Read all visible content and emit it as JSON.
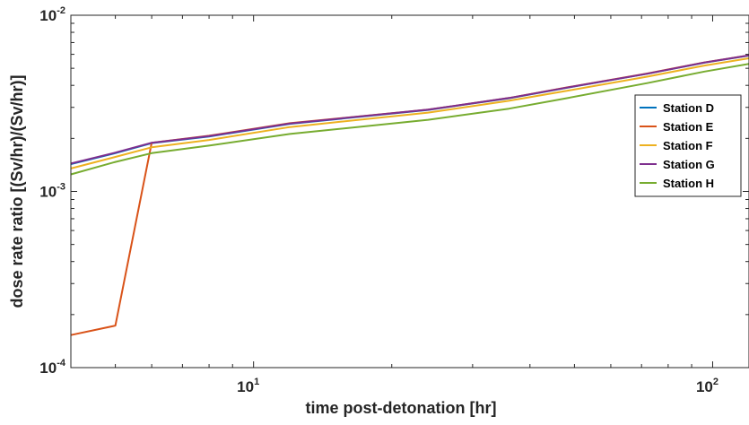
{
  "chart_data": {
    "type": "line",
    "title": "",
    "xlabel": "time post-detonation [hr]",
    "ylabel": "dose rate ratio [(Sv/hr)/(Sv/hr)]",
    "xscale": "log",
    "yscale": "log",
    "xlim": [
      4,
      120
    ],
    "ylim": [
      0.0001,
      0.01
    ],
    "x_ticks": [
      {
        "value": 10,
        "base": "10",
        "exp": "1"
      },
      {
        "value": 100,
        "base": "10",
        "exp": "2"
      }
    ],
    "y_ticks": [
      {
        "value": 0.0001,
        "base": "10",
        "exp": "-4"
      },
      {
        "value": 0.001,
        "base": "10",
        "exp": "-3"
      },
      {
        "value": 0.01,
        "base": "10",
        "exp": "-2"
      }
    ],
    "grid": false,
    "legend_position": "right",
    "series": [
      {
        "name": "Station D",
        "color": "#0072BD",
        "x": [
          4,
          5,
          6,
          8,
          12,
          24,
          36,
          48,
          72,
          96,
          120
        ],
        "y": [
          0.00143,
          0.00165,
          0.00188,
          0.00205,
          0.00242,
          0.0029,
          0.00338,
          0.00387,
          0.00465,
          0.00538,
          0.0059
        ]
      },
      {
        "name": "Station E",
        "color": "#D95319",
        "x": [
          4,
          5,
          6,
          8,
          12,
          24,
          36,
          48,
          72,
          96,
          120
        ],
        "y": [
          0.000153,
          0.000173,
          0.00189,
          0.00207,
          0.00244,
          0.00291,
          0.00339,
          0.00389,
          0.00467,
          0.0054,
          0.00592
        ]
      },
      {
        "name": "Station F",
        "color": "#EDB120",
        "x": [
          4,
          5,
          6,
          8,
          12,
          24,
          36,
          48,
          72,
          96,
          120
        ],
        "y": [
          0.00135,
          0.00157,
          0.00178,
          0.00196,
          0.00232,
          0.0028,
          0.00327,
          0.00372,
          0.00448,
          0.00518,
          0.0057
        ]
      },
      {
        "name": "Station G",
        "color": "#7E2F8E",
        "x": [
          4,
          5,
          6,
          8,
          12,
          24,
          36,
          48,
          72,
          96,
          120
        ],
        "y": [
          0.00144,
          0.00166,
          0.00189,
          0.00206,
          0.00243,
          0.00291,
          0.00339,
          0.00388,
          0.00466,
          0.00539,
          0.00592
        ]
      },
      {
        "name": "Station H",
        "color": "#77AC30",
        "x": [
          4,
          5,
          6,
          8,
          12,
          24,
          36,
          48,
          72,
          96,
          120
        ],
        "y": [
          0.00125,
          0.00147,
          0.00165,
          0.00182,
          0.00212,
          0.00255,
          0.00295,
          0.00338,
          0.00412,
          0.00479,
          0.0053
        ]
      }
    ]
  }
}
